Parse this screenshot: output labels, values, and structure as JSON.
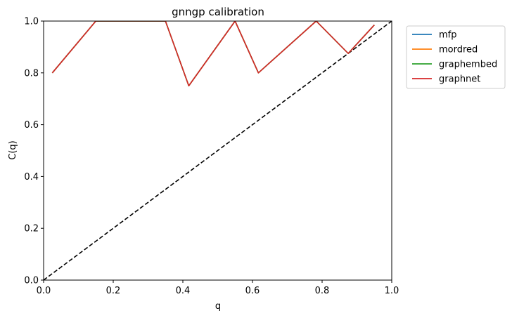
{
  "chart_data": {
    "type": "line",
    "title": "gnngp calibration",
    "xlabel": "q",
    "ylabel": "C(q)",
    "xlim": [
      0,
      1
    ],
    "ylim": [
      0,
      1
    ],
    "xticks": [
      "0.0",
      "0.2",
      "0.4",
      "0.6",
      "0.8",
      "1.0"
    ],
    "yticks": [
      "0.0",
      "0.2",
      "0.4",
      "0.6",
      "0.8",
      "1.0"
    ],
    "grid": false,
    "legend_position": "outside-top-right",
    "series": [
      {
        "name": "mfp",
        "color": "#1f77b4",
        "x": [
          0.025,
          0.15,
          0.35,
          0.417,
          0.55,
          0.617,
          0.783,
          0.875,
          0.95
        ],
        "y": [
          0.8,
          1.0,
          1.0,
          0.75,
          1.0,
          0.8,
          1.0,
          0.875,
          0.985
        ]
      },
      {
        "name": "mordred",
        "color": "#ff7f0e",
        "x": [
          0.025,
          0.15,
          0.35,
          0.417,
          0.55,
          0.617,
          0.783,
          0.875,
          0.95
        ],
        "y": [
          0.8,
          1.0,
          1.0,
          0.75,
          1.0,
          0.8,
          1.0,
          0.875,
          0.985
        ]
      },
      {
        "name": "graphembed",
        "color": "#2ca02c",
        "x": [
          0.025,
          0.15,
          0.35,
          0.417,
          0.55,
          0.617,
          0.783,
          0.875,
          0.95
        ],
        "y": [
          0.8,
          1.0,
          1.0,
          0.75,
          1.0,
          0.8,
          1.0,
          0.875,
          0.985
        ]
      },
      {
        "name": "graphnet",
        "color": "#d62728",
        "x": [
          0.025,
          0.15,
          0.35,
          0.417,
          0.55,
          0.617,
          0.783,
          0.875,
          0.95
        ],
        "y": [
          0.8,
          1.0,
          1.0,
          0.75,
          1.0,
          0.8,
          1.0,
          0.875,
          0.985
        ]
      }
    ],
    "reference_line": {
      "x": [
        0,
        1
      ],
      "y": [
        0,
        1
      ],
      "color": "#000000",
      "style": "dashed"
    }
  }
}
